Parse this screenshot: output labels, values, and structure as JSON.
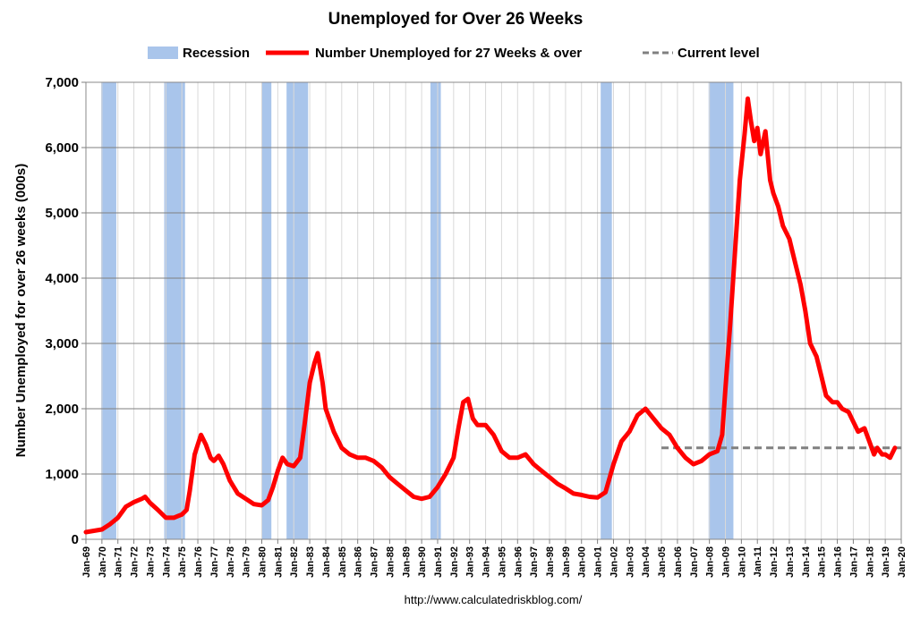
{
  "chart_data": {
    "type": "line",
    "title": "Unemployed for Over 26 Weeks",
    "ylabel": "Number Unemployed for over 26 weeks (000s)",
    "xlabel": "",
    "source": "http://www.calculatedriskblog.com/",
    "xlim": [
      1969.0,
      2020.0
    ],
    "ylim": [
      0,
      7000
    ],
    "yticks": [
      0,
      1000,
      2000,
      3000,
      4000,
      5000,
      6000,
      7000
    ],
    "ytick_labels": [
      "0",
      "1,000",
      "2,000",
      "3,000",
      "4,000",
      "5,000",
      "6,000",
      "7,000"
    ],
    "xtick_labels": [
      "Jan-69",
      "Jan-70",
      "Jan-71",
      "Jan-72",
      "Jan-73",
      "Jan-74",
      "Jan-75",
      "Jan-76",
      "Jan-77",
      "Jan-78",
      "Jan-79",
      "Jan-80",
      "Jan-81",
      "Jan-82",
      "Jan-83",
      "Jan-84",
      "Jan-85",
      "Jan-86",
      "Jan-87",
      "Jan-88",
      "Jan-89",
      "Jan-90",
      "Jan-91",
      "Jan-92",
      "Jan-93",
      "Jan-94",
      "Jan-95",
      "Jan-96",
      "Jan-97",
      "Jan-98",
      "Jan-99",
      "Jan-00",
      "Jan-01",
      "Jan-02",
      "Jan-03",
      "Jan-04",
      "Jan-05",
      "Jan-06",
      "Jan-07",
      "Jan-08",
      "Jan-09",
      "Jan-10",
      "Jan-11",
      "Jan-12",
      "Jan-13",
      "Jan-14",
      "Jan-15",
      "Jan-16",
      "Jan-17",
      "Jan-18",
      "Jan-19",
      "Jan-20"
    ],
    "grid": true,
    "legend_position": "top",
    "legend": [
      {
        "label": "Recession",
        "type": "band",
        "color": "#a9c5eb"
      },
      {
        "label": "Number Unemployed for 27 Weeks & over",
        "type": "line",
        "color": "#ff0000"
      },
      {
        "label": "Current level",
        "type": "dashed",
        "color": "#808080"
      }
    ],
    "recessions": [
      [
        1969.95,
        1970.9
      ],
      [
        1973.9,
        1975.2
      ],
      [
        1980.0,
        1980.6
      ],
      [
        1981.55,
        1982.9
      ],
      [
        1990.55,
        1991.2
      ],
      [
        2001.2,
        2001.9
      ],
      [
        2007.95,
        2009.5
      ]
    ],
    "current_level": {
      "value": 1400,
      "x_start": 2005.0,
      "x_end": 2020.0
    },
    "series": [
      {
        "name": "Number Unemployed for 27 Weeks & over",
        "color": "#ff0000",
        "points": [
          [
            1969.0,
            110
          ],
          [
            1969.5,
            130
          ],
          [
            1970.0,
            150
          ],
          [
            1970.5,
            230
          ],
          [
            1971.0,
            330
          ],
          [
            1971.5,
            500
          ],
          [
            1972.0,
            570
          ],
          [
            1972.5,
            620
          ],
          [
            1972.7,
            650
          ],
          [
            1973.0,
            560
          ],
          [
            1973.5,
            450
          ],
          [
            1974.0,
            330
          ],
          [
            1974.5,
            330
          ],
          [
            1974.8,
            360
          ],
          [
            1975.0,
            380
          ],
          [
            1975.3,
            450
          ],
          [
            1975.5,
            750
          ],
          [
            1975.8,
            1300
          ],
          [
            1976.0,
            1450
          ],
          [
            1976.2,
            1600
          ],
          [
            1976.5,
            1450
          ],
          [
            1976.8,
            1250
          ],
          [
            1977.0,
            1200
          ],
          [
            1977.3,
            1280
          ],
          [
            1977.6,
            1150
          ],
          [
            1978.0,
            900
          ],
          [
            1978.5,
            700
          ],
          [
            1979.0,
            620
          ],
          [
            1979.5,
            540
          ],
          [
            1980.0,
            520
          ],
          [
            1980.4,
            600
          ],
          [
            1980.7,
            800
          ],
          [
            1981.0,
            1050
          ],
          [
            1981.3,
            1250
          ],
          [
            1981.6,
            1150
          ],
          [
            1982.0,
            1120
          ],
          [
            1982.4,
            1250
          ],
          [
            1982.7,
            1800
          ],
          [
            1983.0,
            2400
          ],
          [
            1983.3,
            2700
          ],
          [
            1983.5,
            2850
          ],
          [
            1983.8,
            2400
          ],
          [
            1984.0,
            2000
          ],
          [
            1984.5,
            1650
          ],
          [
            1985.0,
            1400
          ],
          [
            1985.5,
            1300
          ],
          [
            1986.0,
            1250
          ],
          [
            1986.5,
            1250
          ],
          [
            1987.0,
            1200
          ],
          [
            1987.5,
            1100
          ],
          [
            1988.0,
            950
          ],
          [
            1988.5,
            850
          ],
          [
            1989.0,
            750
          ],
          [
            1989.5,
            650
          ],
          [
            1990.0,
            620
          ],
          [
            1990.5,
            650
          ],
          [
            1991.0,
            800
          ],
          [
            1991.5,
            1000
          ],
          [
            1992.0,
            1250
          ],
          [
            1992.3,
            1700
          ],
          [
            1992.6,
            2100
          ],
          [
            1992.9,
            2150
          ],
          [
            1993.2,
            1850
          ],
          [
            1993.5,
            1750
          ],
          [
            1994.0,
            1750
          ],
          [
            1994.5,
            1600
          ],
          [
            1995.0,
            1350
          ],
          [
            1995.5,
            1250
          ],
          [
            1996.0,
            1250
          ],
          [
            1996.5,
            1300
          ],
          [
            1997.0,
            1150
          ],
          [
            1997.5,
            1050
          ],
          [
            1998.0,
            950
          ],
          [
            1998.5,
            850
          ],
          [
            1999.0,
            780
          ],
          [
            1999.5,
            700
          ],
          [
            2000.0,
            680
          ],
          [
            2000.5,
            650
          ],
          [
            2001.0,
            640
          ],
          [
            2001.5,
            720
          ],
          [
            2002.0,
            1150
          ],
          [
            2002.5,
            1500
          ],
          [
            2003.0,
            1650
          ],
          [
            2003.5,
            1900
          ],
          [
            2004.0,
            2000
          ],
          [
            2004.5,
            1850
          ],
          [
            2005.0,
            1700
          ],
          [
            2005.5,
            1600
          ],
          [
            2006.0,
            1400
          ],
          [
            2006.5,
            1250
          ],
          [
            2007.0,
            1150
          ],
          [
            2007.5,
            1200
          ],
          [
            2008.0,
            1300
          ],
          [
            2008.5,
            1350
          ],
          [
            2008.8,
            1600
          ],
          [
            2009.0,
            2300
          ],
          [
            2009.3,
            3300
          ],
          [
            2009.6,
            4400
          ],
          [
            2009.9,
            5500
          ],
          [
            2010.2,
            6200
          ],
          [
            2010.4,
            6750
          ],
          [
            2010.6,
            6400
          ],
          [
            2010.8,
            6100
          ],
          [
            2011.0,
            6300
          ],
          [
            2011.2,
            5900
          ],
          [
            2011.5,
            6250
          ],
          [
            2011.8,
            5500
          ],
          [
            2012.0,
            5300
          ],
          [
            2012.3,
            5100
          ],
          [
            2012.6,
            4800
          ],
          [
            2013.0,
            4600
          ],
          [
            2013.3,
            4300
          ],
          [
            2013.7,
            3900
          ],
          [
            2014.0,
            3500
          ],
          [
            2014.3,
            3000
          ],
          [
            2014.7,
            2800
          ],
          [
            2015.0,
            2500
          ],
          [
            2015.3,
            2200
          ],
          [
            2015.7,
            2100
          ],
          [
            2016.0,
            2100
          ],
          [
            2016.3,
            2000
          ],
          [
            2016.7,
            1950
          ],
          [
            2017.0,
            1800
          ],
          [
            2017.3,
            1650
          ],
          [
            2017.7,
            1700
          ],
          [
            2018.0,
            1500
          ],
          [
            2018.3,
            1300
          ],
          [
            2018.5,
            1400
          ],
          [
            2018.8,
            1300
          ],
          [
            2019.0,
            1300
          ],
          [
            2019.3,
            1250
          ],
          [
            2019.6,
            1400
          ]
        ]
      }
    ]
  }
}
